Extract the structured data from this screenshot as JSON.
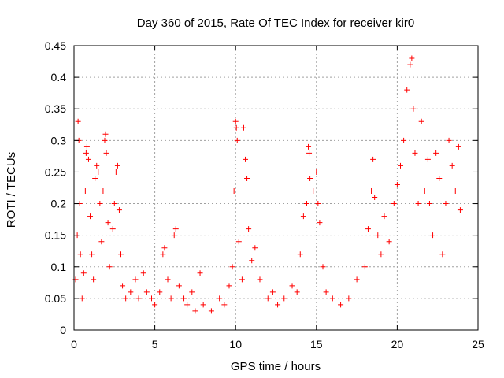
{
  "chart_data": {
    "type": "scatter",
    "title": "Day 360 of 2015, Rate Of TEC Index for receiver kir0",
    "xlabel": "GPS time / hours",
    "ylabel": "ROTI / TECUs",
    "xlim": [
      0,
      25
    ],
    "ylim": [
      0,
      0.45
    ],
    "xticks": [
      0,
      5,
      10,
      15,
      20,
      25
    ],
    "yticks": [
      0,
      0.05,
      0.1,
      0.15,
      0.2,
      0.25,
      0.3,
      0.35,
      0.4,
      0.45
    ],
    "xtick_labels": [
      "0",
      "5",
      "10",
      "15",
      "20",
      "25"
    ],
    "ytick_labels": [
      "0",
      "0.05",
      "0.1",
      "0.15",
      "0.2",
      "0.25",
      "0.3",
      "0.35",
      "0.4",
      "0.45"
    ],
    "grid": true,
    "marker": "+",
    "color": "#ff0000",
    "series": [
      {
        "points": [
          [
            0.1,
            0.08
          ],
          [
            0.2,
            0.15
          ],
          [
            0.25,
            0.33
          ],
          [
            0.3,
            0.3
          ],
          [
            0.35,
            0.2
          ],
          [
            0.4,
            0.12
          ],
          [
            0.5,
            0.05
          ],
          [
            0.6,
            0.09
          ],
          [
            0.7,
            0.22
          ],
          [
            0.75,
            0.28
          ],
          [
            0.8,
            0.29
          ],
          [
            0.9,
            0.27
          ],
          [
            1.0,
            0.18
          ],
          [
            1.1,
            0.12
          ],
          [
            1.2,
            0.08
          ],
          [
            1.3,
            0.24
          ],
          [
            1.4,
            0.26
          ],
          [
            1.5,
            0.25
          ],
          [
            1.6,
            0.2
          ],
          [
            1.7,
            0.14
          ],
          [
            1.8,
            0.22
          ],
          [
            1.9,
            0.3
          ],
          [
            1.95,
            0.31
          ],
          [
            2.0,
            0.28
          ],
          [
            2.1,
            0.17
          ],
          [
            2.2,
            0.1
          ],
          [
            2.4,
            0.16
          ],
          [
            2.5,
            0.2
          ],
          [
            2.6,
            0.25
          ],
          [
            2.7,
            0.26
          ],
          [
            2.8,
            0.19
          ],
          [
            2.9,
            0.12
          ],
          [
            3.0,
            0.07
          ],
          [
            3.2,
            0.05
          ],
          [
            3.5,
            0.06
          ],
          [
            3.8,
            0.08
          ],
          [
            4.0,
            0.05
          ],
          [
            4.3,
            0.09
          ],
          [
            4.5,
            0.06
          ],
          [
            4.8,
            0.05
          ],
          [
            5.0,
            0.04
          ],
          [
            5.3,
            0.06
          ],
          [
            5.5,
            0.12
          ],
          [
            5.6,
            0.13
          ],
          [
            5.8,
            0.08
          ],
          [
            6.0,
            0.05
          ],
          [
            6.2,
            0.15
          ],
          [
            6.3,
            0.16
          ],
          [
            6.5,
            0.07
          ],
          [
            6.8,
            0.05
          ],
          [
            7.0,
            0.04
          ],
          [
            7.3,
            0.06
          ],
          [
            7.5,
            0.03
          ],
          [
            7.8,
            0.09
          ],
          [
            8.0,
            0.04
          ],
          [
            8.5,
            0.03
          ],
          [
            9.0,
            0.05
          ],
          [
            9.3,
            0.04
          ],
          [
            9.6,
            0.07
          ],
          [
            9.8,
            0.1
          ],
          [
            9.9,
            0.22
          ],
          [
            10.0,
            0.33
          ],
          [
            10.05,
            0.32
          ],
          [
            10.1,
            0.3
          ],
          [
            10.2,
            0.14
          ],
          [
            10.4,
            0.08
          ],
          [
            10.5,
            0.32
          ],
          [
            10.6,
            0.27
          ],
          [
            10.7,
            0.24
          ],
          [
            10.8,
            0.16
          ],
          [
            11.0,
            0.11
          ],
          [
            11.2,
            0.13
          ],
          [
            11.5,
            0.08
          ],
          [
            12.0,
            0.05
          ],
          [
            12.3,
            0.06
          ],
          [
            12.6,
            0.04
          ],
          [
            13.0,
            0.05
          ],
          [
            13.5,
            0.07
          ],
          [
            13.8,
            0.06
          ],
          [
            14.0,
            0.12
          ],
          [
            14.2,
            0.18
          ],
          [
            14.4,
            0.2
          ],
          [
            14.5,
            0.29
          ],
          [
            14.55,
            0.28
          ],
          [
            14.6,
            0.24
          ],
          [
            14.8,
            0.22
          ],
          [
            15.0,
            0.25
          ],
          [
            15.1,
            0.2
          ],
          [
            15.2,
            0.17
          ],
          [
            15.4,
            0.1
          ],
          [
            15.6,
            0.06
          ],
          [
            16.0,
            0.05
          ],
          [
            16.5,
            0.04
          ],
          [
            17.0,
            0.05
          ],
          [
            17.5,
            0.08
          ],
          [
            18.0,
            0.1
          ],
          [
            18.2,
            0.16
          ],
          [
            18.4,
            0.22
          ],
          [
            18.5,
            0.27
          ],
          [
            18.6,
            0.21
          ],
          [
            18.8,
            0.15
          ],
          [
            19.0,
            0.12
          ],
          [
            19.2,
            0.18
          ],
          [
            19.5,
            0.14
          ],
          [
            19.8,
            0.2
          ],
          [
            20.0,
            0.23
          ],
          [
            20.2,
            0.26
          ],
          [
            20.4,
            0.3
          ],
          [
            20.6,
            0.38
          ],
          [
            20.8,
            0.42
          ],
          [
            20.9,
            0.43
          ],
          [
            21.0,
            0.35
          ],
          [
            21.1,
            0.28
          ],
          [
            21.3,
            0.2
          ],
          [
            21.5,
            0.33
          ],
          [
            21.7,
            0.22
          ],
          [
            21.9,
            0.27
          ],
          [
            22.0,
            0.2
          ],
          [
            22.2,
            0.15
          ],
          [
            22.4,
            0.28
          ],
          [
            22.6,
            0.24
          ],
          [
            22.8,
            0.12
          ],
          [
            23.0,
            0.2
          ],
          [
            23.2,
            0.3
          ],
          [
            23.4,
            0.26
          ],
          [
            23.6,
            0.22
          ],
          [
            23.8,
            0.29
          ],
          [
            23.9,
            0.19
          ]
        ]
      }
    ]
  }
}
